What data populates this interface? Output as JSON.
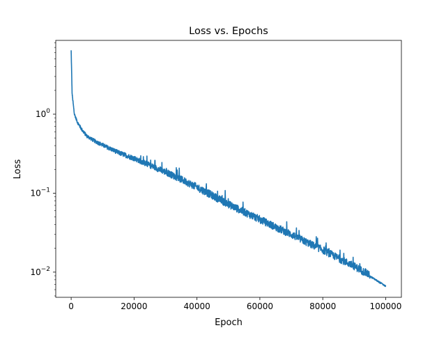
{
  "chart_data": {
    "type": "line",
    "title": "Loss vs. Epochs",
    "xlabel": "Epoch",
    "ylabel": "Loss",
    "xlim": [
      -4900,
      105000
    ],
    "ylim": [
      0.0048,
      8.6
    ],
    "yscale": "log",
    "grid": false,
    "legend": "none",
    "x_ticks": [
      {
        "value": 0,
        "label": "0"
      },
      {
        "value": 20000,
        "label": "20000"
      },
      {
        "value": 40000,
        "label": "40000"
      },
      {
        "value": 60000,
        "label": "60000"
      },
      {
        "value": 80000,
        "label": "80000"
      },
      {
        "value": 100000,
        "label": "100000"
      }
    ],
    "y_ticks": [
      {
        "value": 0.01,
        "base": "10",
        "exp": "−2"
      },
      {
        "value": 0.1,
        "base": "10",
        "exp": "−1"
      },
      {
        "value": 1,
        "base": "10",
        "exp": "0"
      }
    ],
    "series": [
      {
        "color": "#1f77b4",
        "x": [
          0,
          300,
          1000,
          2000,
          3500,
          5000,
          7500,
          10000,
          15000,
          20000,
          25000,
          30000,
          35000,
          40000,
          45000,
          50000,
          55000,
          60000,
          65000,
          70000,
          75000,
          80000,
          85000,
          90000,
          95000,
          100000
        ],
        "y": [
          6.3,
          1.8,
          1.0,
          0.78,
          0.62,
          0.52,
          0.45,
          0.4,
          0.32,
          0.27,
          0.22,
          0.18,
          0.145,
          0.115,
          0.09,
          0.07,
          0.056,
          0.045,
          0.036,
          0.029,
          0.023,
          0.0185,
          0.0145,
          0.0115,
          0.0088,
          0.0066
        ]
      }
    ]
  }
}
